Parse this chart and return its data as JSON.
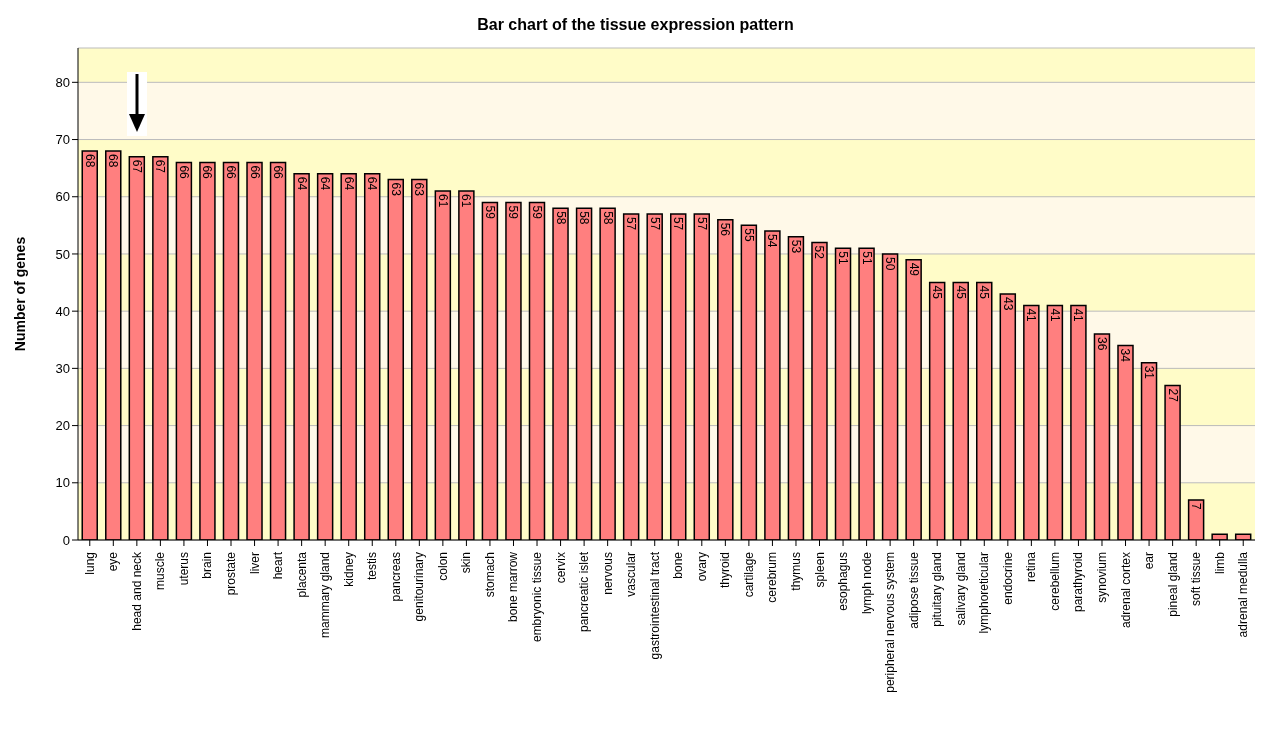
{
  "chart_data": {
    "type": "bar",
    "title": "Bar chart of the tissue expression pattern",
    "ylabel": "Number of genes",
    "categories": [
      "lung",
      "eye",
      "head and neck",
      "muscle",
      "uterus",
      "brain",
      "prostate",
      "liver",
      "heart",
      "placenta",
      "mammary gland",
      "kidney",
      "testis",
      "pancreas",
      "genitourinary",
      "colon",
      "skin",
      "stomach",
      "bone marrow",
      "embryonic tissue",
      "cervix",
      "pancreatic islet",
      "nervous",
      "vascular",
      "gastrointestinal tract",
      "bone",
      "ovary",
      "thyroid",
      "cartilage",
      "cerebrum",
      "thymus",
      "spleen",
      "esophagus",
      "lymph node",
      "peripheral nervous system",
      "adipose tissue",
      "pituitary gland",
      "salivary gland",
      "lymphoreticular",
      "endocrine",
      "retina",
      "cerebellum",
      "parathyroid",
      "synovium",
      "adrenal cortex",
      "ear",
      "pineal gland",
      "soft tissue",
      "limb",
      "adrenal medulla"
    ],
    "values": [
      68,
      68,
      67,
      67,
      66,
      66,
      66,
      66,
      66,
      64,
      64,
      64,
      64,
      63,
      63,
      61,
      61,
      59,
      59,
      59,
      58,
      58,
      58,
      57,
      57,
      57,
      57,
      56,
      55,
      54,
      53,
      52,
      51,
      51,
      50,
      49,
      45,
      45,
      45,
      43,
      41,
      41,
      41,
      36,
      34,
      31,
      27,
      7,
      1,
      1
    ],
    "value_labels": [
      "68",
      "68",
      "67",
      "67",
      "66",
      "66",
      "66",
      "66",
      "66",
      "64",
      "64",
      "64",
      "64",
      "63",
      "63",
      "61",
      "61",
      "59",
      "59",
      "59",
      "58",
      "58",
      "58",
      "57",
      "57",
      "57",
      "57",
      "56",
      "55",
      "54",
      "53",
      "52",
      "51",
      "51",
      "50",
      "49",
      "45",
      "45",
      "45",
      "43",
      "41",
      "41",
      "41",
      "36",
      "34",
      "31",
      "27",
      "7",
      null,
      null
    ],
    "color": "#ff7f7f",
    "ylim": [
      0,
      86
    ],
    "yticks": [
      0,
      10,
      20,
      30,
      40,
      50,
      60,
      70,
      80
    ],
    "grid": "y"
  }
}
